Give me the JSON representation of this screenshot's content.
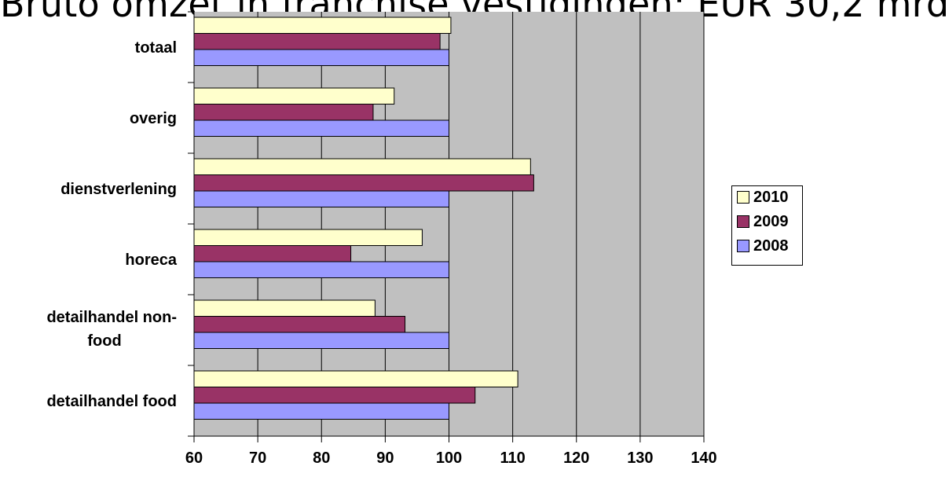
{
  "page": {
    "title": "Bruto omzet in franchise vestigingen: EUR 30,2 mrd"
  },
  "chart_data": {
    "type": "bar",
    "orientation": "horizontal",
    "title": "",
    "xlabel": "",
    "ylabel": "",
    "xlim": [
      60,
      140
    ],
    "xticks": [
      60,
      70,
      80,
      90,
      100,
      110,
      120,
      130,
      140
    ],
    "grid": true,
    "legend_position": "right",
    "categories": [
      "totaal",
      "overig",
      "dienstverlening",
      "horeca",
      [
        "detailhandel non-",
        "food"
      ],
      "detailhandel food"
    ],
    "series": [
      {
        "name": "2010",
        "color": "#ffffcc",
        "values": [
          100.3,
          91.4,
          112.8,
          95.8,
          88.4,
          110.8
        ]
      },
      {
        "name": "2009",
        "color": "#993366",
        "values": [
          98.6,
          88.1,
          113.3,
          84.6,
          93.1,
          104.1
        ]
      },
      {
        "name": "2008",
        "color": "#9999ff",
        "values": [
          100,
          100,
          100,
          100,
          100,
          100
        ]
      }
    ],
    "plot_background": "#c0c0c0",
    "legend": {
      "entries": [
        "2010",
        "2009",
        "2008"
      ]
    }
  }
}
